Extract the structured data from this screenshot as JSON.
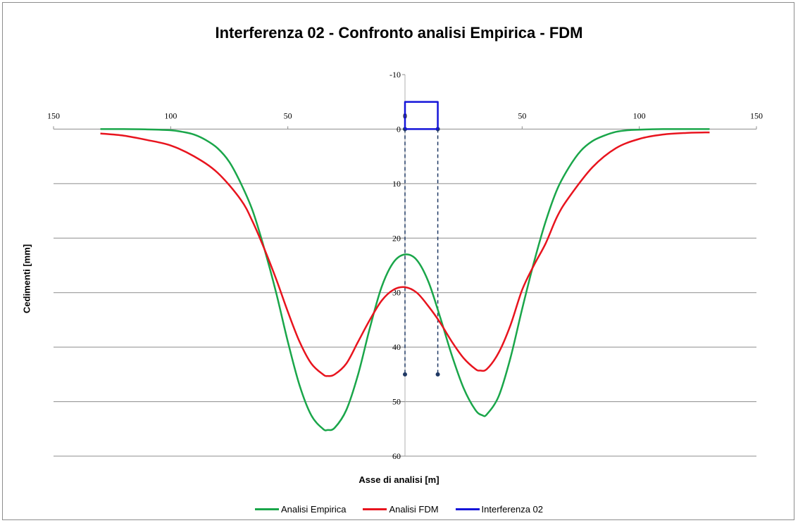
{
  "chart_data": {
    "type": "line",
    "title": "Interferenza 02 - Confronto analisi Empirica - FDM",
    "xlabel": "Asse di analisi [m]",
    "ylabel": "Cedimenti [mm]",
    "xlim": [
      -150,
      150
    ],
    "ylim": [
      -10,
      60
    ],
    "y_inverted": true,
    "x_ticks": [
      -150,
      -100,
      -50,
      0,
      50,
      100,
      150
    ],
    "x_tick_labels": [
      "150",
      "100",
      "50",
      "0",
      "50",
      "100",
      "150"
    ],
    "y_ticks": [
      -10,
      0,
      10,
      20,
      30,
      40,
      50,
      60
    ],
    "y_tick_labels": [
      "-10",
      "0",
      "10",
      "20",
      "30",
      "40",
      "50",
      "60"
    ],
    "grid": "horizontal",
    "legend_position": "bottom",
    "series": [
      {
        "name": "Analisi Empirica",
        "color": "#1aa64a",
        "x": [
          -130,
          -120,
          -110,
          -100,
          -95,
          -90,
          -85,
          -80,
          -75,
          -70,
          -65,
          -60,
          -55,
          -50,
          -45,
          -40,
          -35,
          -33,
          -30,
          -25,
          -20,
          -15,
          -10,
          -5,
          0,
          5,
          10,
          15,
          20,
          25,
          30,
          33,
          35,
          40,
          45,
          50,
          55,
          60,
          65,
          70,
          75,
          80,
          85,
          90,
          95,
          100,
          110,
          120,
          130
        ],
        "y": [
          0,
          0,
          0.05,
          0.2,
          0.5,
          1,
          2,
          3.5,
          6,
          10,
          15,
          22,
          30,
          39,
          47,
          52.5,
          55,
          55.2,
          54.8,
          51.5,
          45,
          36.5,
          29,
          24.5,
          23,
          24,
          28,
          34.5,
          41.5,
          47.5,
          51.5,
          52.5,
          52.3,
          49,
          42,
          33,
          24.5,
          17,
          11,
          7,
          4,
          2.2,
          1.2,
          0.5,
          0.2,
          0.1,
          0,
          0,
          0
        ]
      },
      {
        "name": "Analisi FDM",
        "color": "#e8141e",
        "x": [
          -130,
          -120,
          -110,
          -100,
          -90,
          -80,
          -70,
          -65,
          -60,
          -55,
          -50,
          -45,
          -40,
          -35,
          -33,
          -30,
          -25,
          -20,
          -15,
          -10,
          -5,
          0,
          5,
          10,
          15,
          20,
          25,
          30,
          32,
          35,
          40,
          45,
          50,
          55,
          60,
          65,
          70,
          80,
          90,
          100,
          110,
          120,
          130
        ],
        "y": [
          0.8,
          1.2,
          2,
          3,
          5,
          8,
          13,
          17,
          22,
          27.5,
          33.5,
          39,
          43,
          45,
          45.3,
          45,
          43,
          39,
          35,
          31.5,
          29.5,
          29,
          30,
          32.5,
          35.5,
          39,
          42,
          44,
          44.3,
          44,
          41,
          36,
          29.5,
          25,
          21,
          16,
          12.5,
          7,
          3.5,
          1.8,
          1,
          0.7,
          0.6
        ]
      },
      {
        "name": "Interferenza 02",
        "color": "#1515d9",
        "x": [
          0,
          0,
          14,
          14,
          0
        ],
        "y": [
          0,
          -5,
          -5,
          0,
          0
        ]
      }
    ],
    "markers": {
      "x": [
        0,
        14
      ],
      "y_top": 0,
      "y_bottom": 45,
      "color": "#1f3864"
    }
  }
}
